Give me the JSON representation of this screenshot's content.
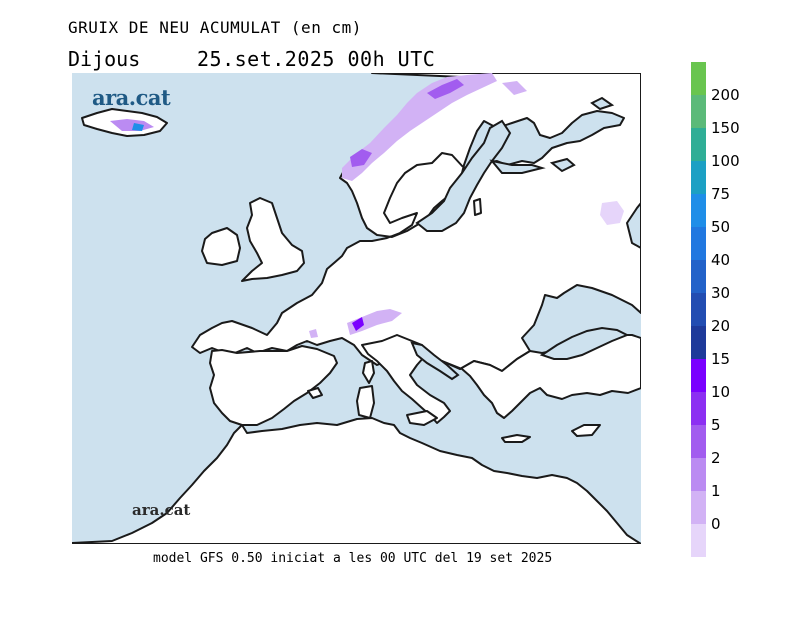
{
  "header": {
    "title": "GRUIX DE NEU ACUMULAT (en cm)",
    "day": "Dijous",
    "date": "25.set.2025 00h UTC"
  },
  "map": {
    "brand": "ara.cat",
    "sea_color": "#cde1ee",
    "land_color": "#ffffff",
    "coast_color": "#1a1a1a"
  },
  "footer": "model GFS 0.50 iniciat a les 00 UTC del 19 set 2025",
  "legend": {
    "colors": [
      "#69c54f",
      "#5bba79",
      "#2fae96",
      "#1ca0c4",
      "#1f8ee8",
      "#2178e0",
      "#2262c9",
      "#224db2",
      "#1e3a9a",
      "#7a00ff",
      "#8c2ff2",
      "#a25cef",
      "#bb8bf2",
      "#d2b2f5",
      "#e6d5fa"
    ],
    "labels": [
      "200",
      "150",
      "100",
      "75",
      "50",
      "40",
      "30",
      "20",
      "15",
      "10",
      "5",
      "2",
      "1",
      "0"
    ]
  }
}
